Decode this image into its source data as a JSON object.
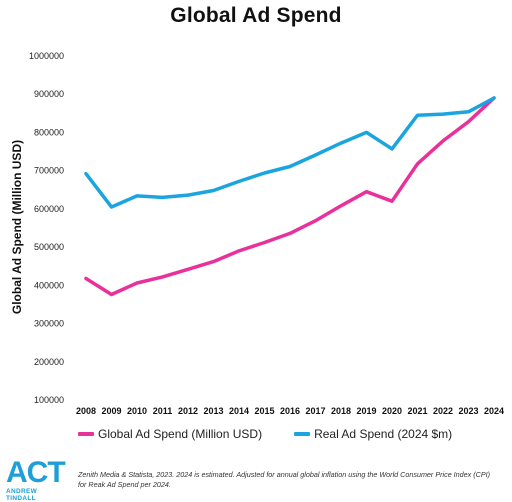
{
  "chart_data": {
    "type": "line",
    "title": "Global Ad Spend",
    "ylabel": "Global Ad Spend (Million USD)",
    "xlabel": "",
    "ylim": [
      100000,
      1000000
    ],
    "yticks": [
      100000,
      200000,
      300000,
      400000,
      500000,
      600000,
      700000,
      800000,
      900000,
      1000000
    ],
    "categories": [
      "2008",
      "2009",
      "2010",
      "2011",
      "2012",
      "2013",
      "2014",
      "2015",
      "2016",
      "2017",
      "2018",
      "2019",
      "2020",
      "2021",
      "2022",
      "2023",
      "2024"
    ],
    "grid": false,
    "legend_position": "bottom",
    "series": [
      {
        "name": "Global Ad Spend (Million USD)",
        "color": "#e8319a",
        "values": [
          418000,
          376000,
          406000,
          422000,
          442000,
          462000,
          490000,
          512000,
          536000,
          569000,
          608000,
          645000,
          620000,
          718000,
          778000,
          828000,
          890000
        ]
      },
      {
        "name": "Real Ad Spend (2024 $m)",
        "color": "#1aa5e0",
        "values": [
          692000,
          605000,
          634000,
          630000,
          636000,
          648000,
          672000,
          694000,
          711000,
          741000,
          772000,
          800000,
          757000,
          845000,
          848000,
          854000,
          890000
        ]
      }
    ]
  },
  "footer": {
    "logo_text": "ACT",
    "logo_subtext": "ANDREW TINDALL",
    "source_text": "Zenith Media & Statista, 2023. 2024 is estimated. Adjusted for annual global inflation using the World Consumer Price Index (CPI) for Reak Ad Spend per 2024."
  }
}
